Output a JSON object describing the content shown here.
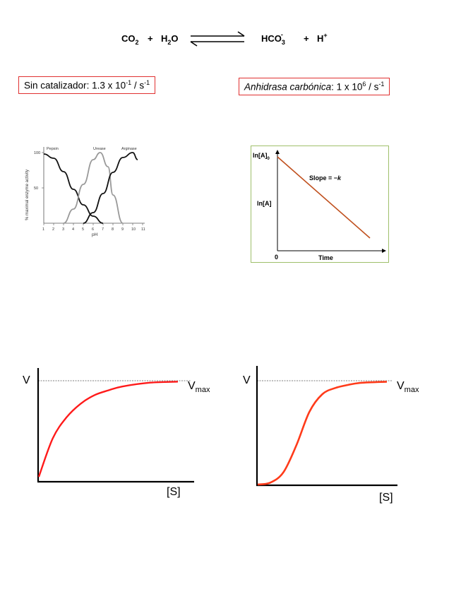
{
  "equation": {
    "reactant1": "CO",
    "reactant1_sub": "2",
    "plus1": "+",
    "reactant2_a": "H",
    "reactant2_sub": "2",
    "reactant2_b": "O",
    "product1_a": "HCO",
    "product1_sub": "3",
    "product1_sup": "-",
    "plus2": "+",
    "product2": "H",
    "product2_sup": "+"
  },
  "rates": {
    "uncatalyzed": {
      "label": "Sin catalizador",
      "value_prefix": ": 1.3 x 10",
      "exponent": "-1",
      "unit_prefix": " / s",
      "unit_exponent": "-1"
    },
    "catalyzed": {
      "label": "Anhidrasa carbónica",
      "value_prefix": ": 1 x 10",
      "exponent": "6",
      "unit_prefix": " / s",
      "unit_exponent": "-1"
    }
  },
  "ph_chart": {
    "ylabel": "% maximal enzyme activity",
    "xlabel": "pH",
    "series_labels": [
      "Pepsin",
      "Urease",
      "Arginase"
    ],
    "yticks": [
      "100",
      "50"
    ],
    "xticks": [
      "1",
      "2",
      "3",
      "4",
      "5",
      "6",
      "7",
      "8",
      "9",
      "10",
      "11"
    ]
  },
  "kinetics_chart": {
    "y_label_top": "ln[A]",
    "y_label_top_sub": "0",
    "y_label_mid": "ln[A]",
    "slope_label": "Slope = −",
    "slope_var": "k",
    "origin_label": "0",
    "xlabel": "Time",
    "line_color": "#c0501e"
  },
  "mm_chart": {
    "ylabel": "V",
    "vmax_label": "V",
    "vmax_sub": "max",
    "xlabel": "[S]",
    "curve_color": "#ff1a1a"
  },
  "sigmoid_chart": {
    "ylabel": "V",
    "vmax_label": "V",
    "vmax_sub": "max",
    "xlabel": "[S]",
    "curve_color": "#ff3b1a"
  },
  "chart_data": [
    {
      "type": "line",
      "xlabel": "pH",
      "ylabel": "% maximal enzyme activity",
      "xlim": [
        1,
        11
      ],
      "ylim": [
        0,
        100
      ],
      "series": [
        {
          "name": "Pepsin",
          "x": [
            1,
            2,
            3,
            4,
            5,
            6,
            7
          ],
          "values": [
            98,
            92,
            73,
            48,
            26,
            10,
            0
          ]
        },
        {
          "name": "Urease",
          "x": [
            3,
            4,
            5,
            6,
            6.7,
            7.5,
            8,
            9
          ],
          "values": [
            0,
            20,
            55,
            90,
            100,
            80,
            40,
            0
          ]
        },
        {
          "name": "Arginase",
          "x": [
            5,
            6,
            7,
            8,
            9,
            10,
            10.5
          ],
          "values": [
            0,
            15,
            42,
            72,
            93,
            100,
            90
          ]
        }
      ]
    },
    {
      "type": "line",
      "xlabel": "Time",
      "ylabel": "ln[A]",
      "series": [
        {
          "name": "",
          "x": [
            0,
            1
          ],
          "values": [
            1,
            0
          ]
        }
      ]
    },
    {
      "type": "line",
      "xlabel": "[S]",
      "ylabel": "V",
      "series": [
        {
          "name": "",
          "x": [
            0,
            1,
            2,
            3,
            4,
            5,
            6,
            8,
            10
          ],
          "values": [
            0,
            0.4,
            0.62,
            0.76,
            0.85,
            0.9,
            0.94,
            0.98,
            0.99
          ]
        }
      ]
    },
    {
      "type": "line",
      "xlabel": "[S]",
      "ylabel": "V",
      "series": [
        {
          "name": "",
          "x": [
            0,
            1,
            2,
            3,
            4,
            5,
            6,
            7,
            8,
            10
          ],
          "values": [
            0,
            0.02,
            0.12,
            0.38,
            0.7,
            0.87,
            0.93,
            0.96,
            0.98,
            0.99
          ]
        }
      ]
    }
  ]
}
